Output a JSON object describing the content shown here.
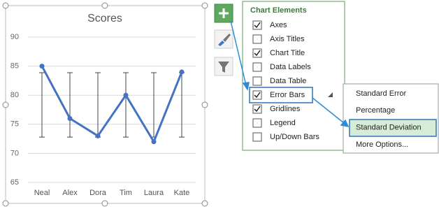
{
  "chart_data": {
    "type": "line",
    "title": "Scores",
    "categories": [
      "Neal",
      "Alex",
      "Dora",
      "Tim",
      "Laura",
      "Kate"
    ],
    "values": [
      85,
      76,
      73,
      80,
      72,
      84
    ],
    "color": "#4472c4",
    "ylim": [
      65,
      90
    ],
    "yticks": [
      65,
      70,
      75,
      80,
      85,
      90
    ],
    "grid": true,
    "error_bars": {
      "center": 78.33,
      "error": 5.54
    }
  },
  "chart_elements": {
    "title": "Chart Elements",
    "items": [
      {
        "label": "Axes",
        "checked": true
      },
      {
        "label": "Axis Titles",
        "checked": false
      },
      {
        "label": "Chart Title",
        "checked": true
      },
      {
        "label": "Data Labels",
        "checked": false
      },
      {
        "label": "Data Table",
        "checked": false
      },
      {
        "label": "Error Bars",
        "checked": true
      },
      {
        "label": "Gridlines",
        "checked": true
      },
      {
        "label": "Legend",
        "checked": false
      },
      {
        "label": "Up/Down Bars",
        "checked": false
      }
    ]
  },
  "error_bar_options": {
    "items": [
      "Standard Error",
      "Percentage",
      "Standard Deviation",
      "More Options..."
    ]
  }
}
